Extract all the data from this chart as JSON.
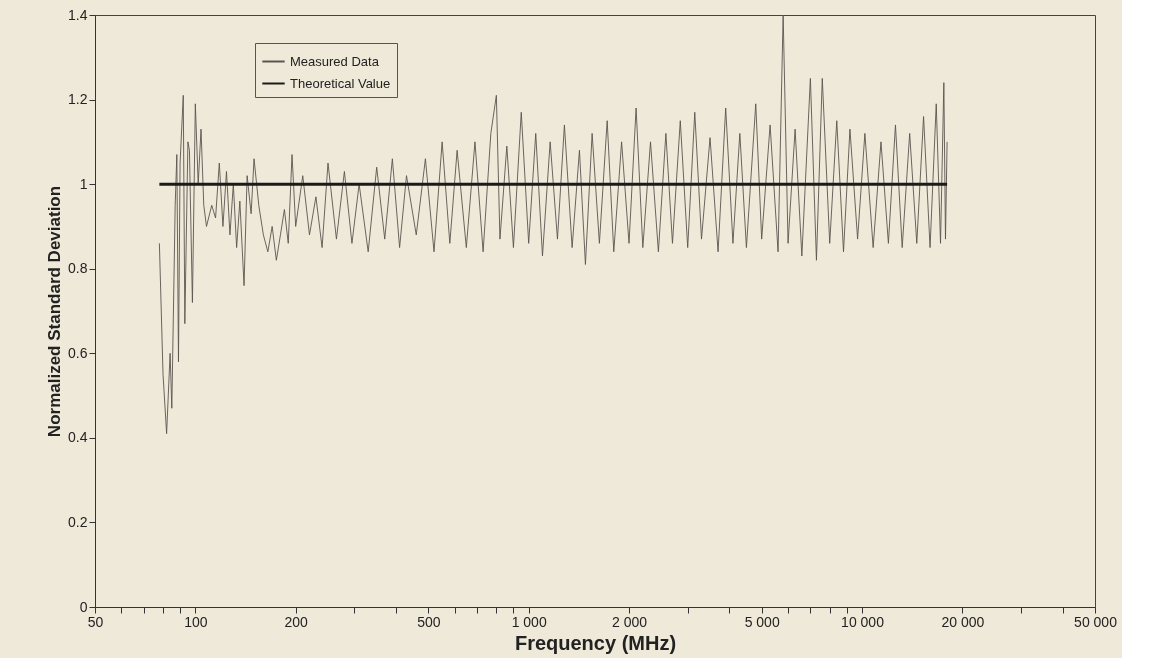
{
  "chart_data": {
    "type": "line",
    "xlabel": "Frequency (MHz)",
    "ylabel": "Normalized Standard Deviation",
    "log": "x",
    "grid": false,
    "legend": "top left",
    "marker": "none",
    "line_style": "solid",
    "xlim": [
      50,
      50000
    ],
    "ylim": [
      0,
      1.4
    ],
    "yticks": [
      0,
      0.2,
      0.4,
      0.6,
      0.8,
      1,
      1.2,
      1.4
    ],
    "xticks": [
      {
        "value": 50,
        "label": "50"
      },
      {
        "value": 60,
        "label": null
      },
      {
        "value": 70,
        "label": null
      },
      {
        "value": 80,
        "label": null
      },
      {
        "value": 90,
        "label": null
      },
      {
        "value": 100,
        "label": "100"
      },
      {
        "value": 200,
        "label": "200"
      },
      {
        "value": 300,
        "label": null
      },
      {
        "value": 400,
        "label": null
      },
      {
        "value": 500,
        "label": "500"
      },
      {
        "value": 600,
        "label": null
      },
      {
        "value": 700,
        "label": null
      },
      {
        "value": 800,
        "label": null
      },
      {
        "value": 900,
        "label": null
      },
      {
        "value": 1000,
        "label": "1 000"
      },
      {
        "value": 2000,
        "label": "2 000"
      },
      {
        "value": 3000,
        "label": null
      },
      {
        "value": 4000,
        "label": null
      },
      {
        "value": 5000,
        "label": "5 000"
      },
      {
        "value": 6000,
        "label": null
      },
      {
        "value": 7000,
        "label": null
      },
      {
        "value": 8000,
        "label": null
      },
      {
        "value": 9000,
        "label": null
      },
      {
        "value": 10000,
        "label": "10 000"
      },
      {
        "value": 20000,
        "label": "20 000"
      },
      {
        "value": 30000,
        "label": null
      },
      {
        "value": 40000,
        "label": null
      },
      {
        "value": 50000,
        "label": "50 000"
      }
    ],
    "series": [
      {
        "name": "Measured Data",
        "color": "#5a5550",
        "x": [
          78,
          80,
          82,
          84,
          85,
          87,
          88,
          89,
          90,
          92,
          93,
          95,
          96,
          98,
          100,
          102,
          104,
          106,
          108,
          112,
          115,
          118,
          121,
          124,
          127,
          130,
          133,
          136,
          140,
          143,
          147,
          150,
          155,
          160,
          165,
          170,
          175,
          180,
          185,
          190,
          195,
          200,
          210,
          220,
          230,
          240,
          250,
          265,
          280,
          295,
          310,
          330,
          350,
          370,
          390,
          410,
          430,
          460,
          490,
          520,
          550,
          580,
          610,
          650,
          690,
          730,
          770,
          800,
          820,
          860,
          900,
          950,
          1000,
          1050,
          1100,
          1160,
          1220,
          1280,
          1350,
          1420,
          1480,
          1550,
          1630,
          1720,
          1800,
          1900,
          2000,
          2100,
          2200,
          2320,
          2450,
          2580,
          2700,
          2850,
          3000,
          3150,
          3300,
          3500,
          3700,
          3900,
          4100,
          4300,
          4500,
          4800,
          5000,
          5300,
          5600,
          5800,
          6000,
          6300,
          6600,
          7000,
          7300,
          7600,
          8000,
          8400,
          8800,
          9200,
          9700,
          10200,
          10800,
          11400,
          12000,
          12600,
          13200,
          13900,
          14600,
          15300,
          16000,
          16700,
          17200,
          17600,
          17800,
          18000
        ],
        "values": [
          0.86,
          0.55,
          0.41,
          0.6,
          0.47,
          0.95,
          1.07,
          0.58,
          1.05,
          1.21,
          0.67,
          1.1,
          1.08,
          0.72,
          1.19,
          1.0,
          1.13,
          0.95,
          0.9,
          0.95,
          0.92,
          1.05,
          0.9,
          1.03,
          0.88,
          1.0,
          0.85,
          0.96,
          0.76,
          1.02,
          0.93,
          1.06,
          0.95,
          0.88,
          0.84,
          0.9,
          0.82,
          0.88,
          0.94,
          0.86,
          1.07,
          0.9,
          1.02,
          0.88,
          0.97,
          0.85,
          1.05,
          0.87,
          1.03,
          0.86,
          1.0,
          0.84,
          1.04,
          0.87,
          1.06,
          0.85,
          1.02,
          0.88,
          1.06,
          0.84,
          1.1,
          0.86,
          1.08,
          0.85,
          1.1,
          0.84,
          1.12,
          1.21,
          0.87,
          1.09,
          0.85,
          1.17,
          0.86,
          1.12,
          0.83,
          1.1,
          0.87,
          1.14,
          0.85,
          1.08,
          0.81,
          1.12,
          0.86,
          1.15,
          0.84,
          1.1,
          0.86,
          1.18,
          0.85,
          1.1,
          0.84,
          1.12,
          0.86,
          1.15,
          0.85,
          1.17,
          0.87,
          1.11,
          0.84,
          1.18,
          0.86,
          1.12,
          0.85,
          1.19,
          0.87,
          1.14,
          0.84,
          1.4,
          0.86,
          1.13,
          0.83,
          1.25,
          0.82,
          1.25,
          0.86,
          1.15,
          0.84,
          1.13,
          0.87,
          1.12,
          0.85,
          1.1,
          0.86,
          1.14,
          0.85,
          1.12,
          0.86,
          1.16,
          0.85,
          1.19,
          0.86,
          1.24,
          0.87,
          1.1
        ]
      },
      {
        "name": "Theoretical Value",
        "color": "#1a1a1a",
        "x": [
          78,
          18000
        ],
        "values": [
          1,
          1
        ]
      }
    ]
  }
}
